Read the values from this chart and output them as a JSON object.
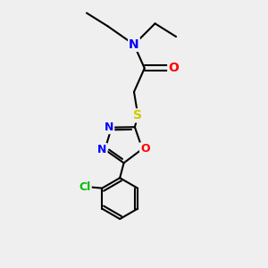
{
  "bg_color": "#efefef",
  "bond_color": "#000000",
  "N_color": "#0000ff",
  "O_color": "#ff0000",
  "S_color": "#cccc00",
  "Cl_color": "#00bb00",
  "bond_lw": 1.5,
  "font_size": 9,
  "fig_w": 3.0,
  "fig_h": 3.0,
  "dpi": 100,
  "xlim": [
    0,
    10
  ],
  "ylim": [
    0,
    10
  ]
}
